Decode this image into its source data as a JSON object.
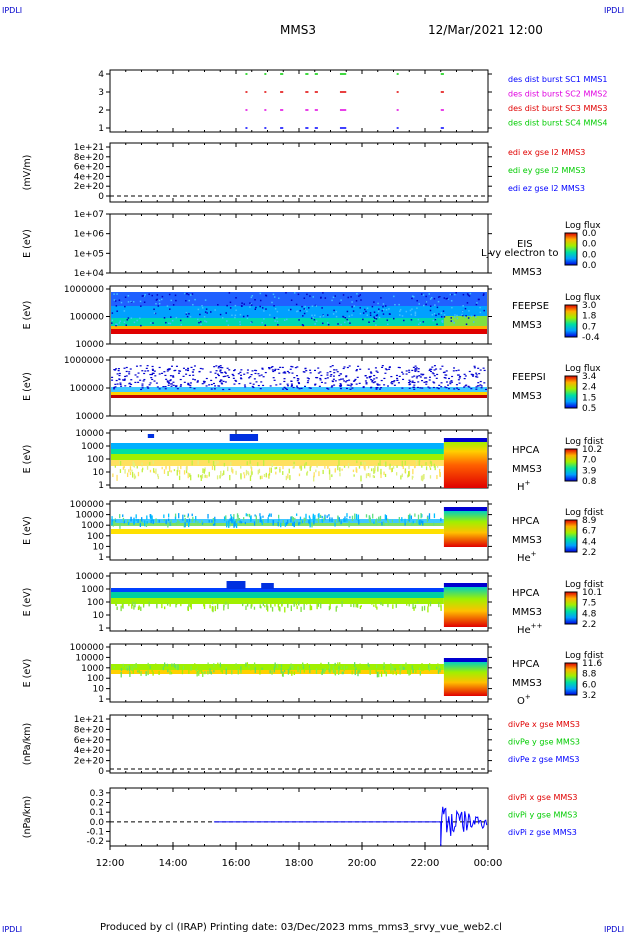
{
  "corner_labels": {
    "top_left": "IPDLI",
    "top_right": "IPDLI",
    "bottom_left": "IPDLI",
    "bottom_right": "IPDLI"
  },
  "header": {
    "spacecraft": "MMS3",
    "datetime": "12/Mar/2021 12:00"
  },
  "footer": {
    "text": "Produced by cl (IRAP)    Printing date: 03/Dec/2023    mms_mms3_srvy_vue_web2.cl"
  },
  "time_axis": {
    "ticks": [
      "12:00",
      "14:00",
      "16:00",
      "18:00",
      "20:00",
      "22:00",
      "00:00"
    ]
  },
  "colors": {
    "blue": "#0000ff",
    "magenta": "#e000e0",
    "red": "#e00000",
    "green": "#00cc00",
    "black": "#000000"
  },
  "chart_data": [
    {
      "type": "scatter",
      "panel": "burst",
      "ylim": [
        0.5,
        4.5
      ],
      "yticks": [
        "4",
        "3",
        "2",
        "1"
      ],
      "ylabel": "",
      "legend": [
        {
          "text": "des dist burst SC1 MMS1",
          "color": "#0000ff"
        },
        {
          "text": "des dist burst SC2 MMS2",
          "color": "#e000e0"
        },
        {
          "text": "des dist burst SC3 MMS3",
          "color": "#e00000"
        },
        {
          "text": "des dist burst SC4 MMS4",
          "color": "#00cc00"
        }
      ],
      "burst_hours": [
        [
          16.3,
          16.35
        ],
        [
          16.9,
          16.95
        ],
        [
          17.4,
          17.5
        ],
        [
          18.2,
          18.3
        ],
        [
          18.5,
          18.6
        ],
        [
          19.3,
          19.5
        ],
        [
          21.1,
          21.15
        ],
        [
          22.5,
          22.6
        ]
      ]
    },
    {
      "type": "line",
      "panel": "edi",
      "ylabel": "(mV/m)",
      "yticks": [
        "1e+21",
        "8e+20",
        "6e+20",
        "4e+20",
        "2e+20",
        "0"
      ],
      "legend": [
        {
          "text": "edi ex gse l2 MMS3",
          "color": "#e00000"
        },
        {
          "text": "edi ey gse l2 MMS3",
          "color": "#00cc00"
        },
        {
          "text": "edi ez gse l2 MMS3",
          "color": "#0000ff"
        }
      ]
    },
    {
      "type": "heatmap",
      "panel": "eis",
      "ylabel": "E (eV)",
      "yticks": [
        "1e+07",
        "1e+06",
        "1e+05",
        "1e+04"
      ],
      "instrument": "EIS",
      "spacecraft": "MMS3",
      "overlay": "Ljvy electron to",
      "cbar_title": "Log flux",
      "cbar_ticks": [
        "0.0",
        "0.0",
        "0.0",
        "0.0"
      ]
    },
    {
      "type": "heatmap",
      "panel": "feepse",
      "ylabel": "E (eV)",
      "yticks": [
        "1000000",
        "100000",
        "10000"
      ],
      "instrument": "FEEPSE",
      "spacecraft": "MMS3",
      "cbar_title": "Log flux",
      "cbar_ticks": [
        "3.0",
        "1.8",
        "0.7",
        "-0.4"
      ]
    },
    {
      "type": "heatmap",
      "panel": "feepsi",
      "ylabel": "E (eV)",
      "yticks": [
        "1000000",
        "100000",
        "10000"
      ],
      "instrument": "FEEPSI",
      "spacecraft": "MMS3",
      "cbar_title": "Log flux",
      "cbar_ticks": [
        "3.4",
        "2.4",
        "1.5",
        "0.5"
      ]
    },
    {
      "type": "heatmap",
      "panel": "hpca_h",
      "ylabel": "E (eV)",
      "yticks": [
        "10000",
        "1000",
        "100",
        "10",
        "1"
      ],
      "instrument": "HPCA",
      "spacecraft": "MMS3",
      "species": "H",
      "charge": "+",
      "cbar_title": "Log fdist",
      "cbar_ticks": [
        "10.2",
        "7.0",
        "3.9",
        "0.8"
      ]
    },
    {
      "type": "heatmap",
      "panel": "hpca_he",
      "ylabel": "E (eV)",
      "yticks": [
        "100000",
        "10000",
        "1000",
        "100",
        "10",
        "1"
      ],
      "instrument": "HPCA",
      "spacecraft": "MMS3",
      "species": "He",
      "charge": "+",
      "cbar_title": "Log fdist",
      "cbar_ticks": [
        "8.9",
        "6.7",
        "4.4",
        "2.2"
      ]
    },
    {
      "type": "heatmap",
      "panel": "hpca_hepp",
      "ylabel": "E (eV)",
      "yticks": [
        "10000",
        "1000",
        "100",
        "10",
        "1"
      ],
      "instrument": "HPCA",
      "spacecraft": "MMS3",
      "species": "He",
      "charge": "++",
      "cbar_title": "Log fdist",
      "cbar_ticks": [
        "10.1",
        "7.5",
        "4.8",
        "2.2"
      ]
    },
    {
      "type": "heatmap",
      "panel": "hpca_o",
      "ylabel": "E (eV)",
      "yticks": [
        "100000",
        "10000",
        "1000",
        "100",
        "10",
        "1"
      ],
      "instrument": "HPCA",
      "spacecraft": "MMS3",
      "species": "O",
      "charge": "+",
      "cbar_title": "Log fdist",
      "cbar_ticks": [
        "11.6",
        "8.8",
        "6.0",
        "3.2"
      ]
    },
    {
      "type": "line",
      "panel": "divpe",
      "ylabel": "(nPa/km)",
      "yticks": [
        "1e+21",
        "8e+20",
        "6e+20",
        "4e+20",
        "2e+20",
        "0"
      ],
      "legend": [
        {
          "text": "divPe x gse MMS3",
          "color": "#e00000"
        },
        {
          "text": "divPe y gse MMS3",
          "color": "#00cc00"
        },
        {
          "text": "divPe z gse MMS3",
          "color": "#0000ff"
        }
      ]
    },
    {
      "type": "line",
      "panel": "divpi",
      "ylabel": "(nPa/km)",
      "ylim": [
        -0.25,
        0.35
      ],
      "yticks": [
        "0.3",
        "0.2",
        "0.1",
        "0.0",
        "-0.1",
        "-0.2"
      ],
      "legend": [
        {
          "text": "divPi x gse MMS3",
          "color": "#e00000"
        },
        {
          "text": "divPi y gse MMS3",
          "color": "#00cc00"
        },
        {
          "text": "divPi z gse MMS3",
          "color": "#0000ff"
        }
      ]
    }
  ]
}
